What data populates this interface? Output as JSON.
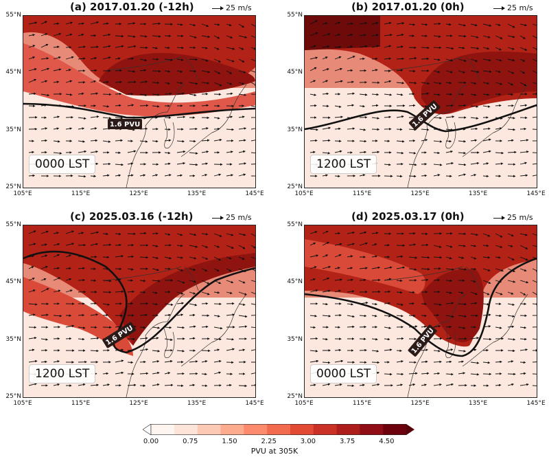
{
  "panels": [
    {
      "title": "(a) 2017.01.20 (-12h)",
      "vector_label": "25 m/s",
      "contour_label": "1.6 PVU",
      "time_label": "0000 LST"
    },
    {
      "title": "(b) 2017.01.20 (0h)",
      "vector_label": "25 m/s",
      "contour_label": "1.6 PVU",
      "time_label": "1200 LST"
    },
    {
      "title": "(c) 2025.03.16 (-12h)",
      "vector_label": "25 m/s",
      "contour_label": "1.6 PVU",
      "time_label": "1200 LST"
    },
    {
      "title": "(d) 2025.03.17 (0h)",
      "vector_label": "25 m/s",
      "contour_label": "1.6 PVU",
      "time_label": "0000 LST"
    }
  ],
  "lat_ticks": [
    "55°N",
    "45°N",
    "35°N",
    "25°N"
  ],
  "lon_ticks": [
    "105°E",
    "115°E",
    "125°E",
    "135°E",
    "145°E"
  ],
  "colorbar": {
    "ticks": [
      "0.00",
      "0.75",
      "1.50",
      "2.25",
      "3.00",
      "3.75",
      "4.50"
    ],
    "label": "PVU at 305K",
    "colors": [
      "#fff5f0",
      "#fde4d8",
      "#fcc9b4",
      "#fcab8f",
      "#fb8b6c",
      "#f36b4e",
      "#e34a33",
      "#c93127",
      "#ad1d1b",
      "#8f0d14",
      "#6d010c"
    ]
  }
}
